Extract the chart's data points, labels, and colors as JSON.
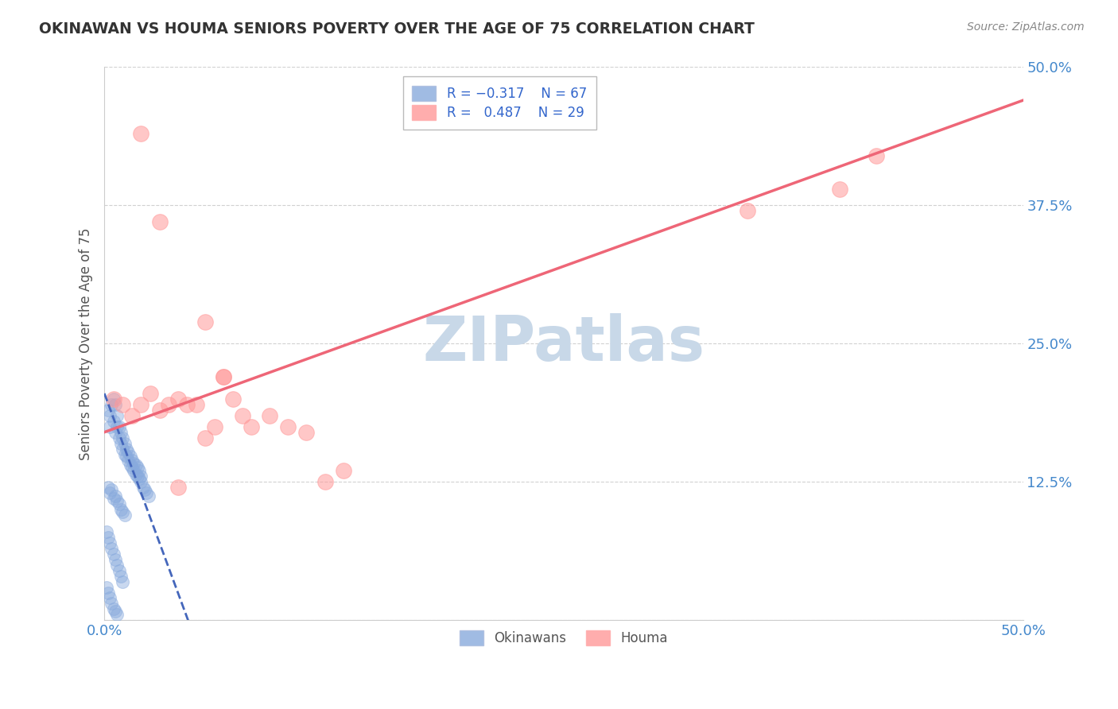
{
  "title": "OKINAWAN VS HOUMA SENIORS POVERTY OVER THE AGE OF 75 CORRELATION CHART",
  "source_text": "Source: ZipAtlas.com",
  "ylabel": "Seniors Poverty Over the Age of 75",
  "xlabel": "",
  "xlim": [
    0,
    0.5
  ],
  "ylim": [
    0,
    0.5
  ],
  "xticks": [
    0.0,
    0.125,
    0.25,
    0.375,
    0.5
  ],
  "yticks": [
    0.0,
    0.125,
    0.25,
    0.375,
    0.5
  ],
  "xticklabels": [
    "0.0%",
    "",
    "",
    "",
    "50.0%"
  ],
  "yticklabels": [
    "",
    "12.5%",
    "25.0%",
    "37.5%",
    "50.0%"
  ],
  "legend_label_blue": "Okinawans",
  "legend_label_pink": "Houma",
  "blue_color": "#88AADD",
  "pink_color": "#FF9999",
  "blue_line_color": "#4466BB",
  "pink_line_color": "#EE6677",
  "watermark_color": "#C8D8E8",
  "okinawan_x": [
    0.002,
    0.003,
    0.003,
    0.004,
    0.005,
    0.005,
    0.006,
    0.006,
    0.007,
    0.007,
    0.008,
    0.008,
    0.009,
    0.009,
    0.01,
    0.01,
    0.011,
    0.011,
    0.012,
    0.012,
    0.013,
    0.013,
    0.014,
    0.014,
    0.015,
    0.015,
    0.016,
    0.016,
    0.017,
    0.017,
    0.018,
    0.018,
    0.019,
    0.019,
    0.02,
    0.02,
    0.021,
    0.022,
    0.023,
    0.024,
    0.002,
    0.003,
    0.004,
    0.005,
    0.006,
    0.007,
    0.008,
    0.009,
    0.01,
    0.011,
    0.001,
    0.002,
    0.003,
    0.004,
    0.005,
    0.006,
    0.007,
    0.008,
    0.009,
    0.01,
    0.001,
    0.002,
    0.003,
    0.004,
    0.005,
    0.006,
    0.007
  ],
  "okinawan_y": [
    0.19,
    0.185,
    0.175,
    0.195,
    0.18,
    0.2,
    0.17,
    0.195,
    0.175,
    0.185,
    0.165,
    0.175,
    0.16,
    0.17,
    0.155,
    0.165,
    0.15,
    0.16,
    0.148,
    0.155,
    0.145,
    0.152,
    0.14,
    0.148,
    0.138,
    0.145,
    0.135,
    0.142,
    0.132,
    0.14,
    0.13,
    0.138,
    0.128,
    0.135,
    0.125,
    0.13,
    0.12,
    0.118,
    0.115,
    0.112,
    0.12,
    0.115,
    0.118,
    0.11,
    0.112,
    0.108,
    0.105,
    0.1,
    0.098,
    0.095,
    0.08,
    0.075,
    0.07,
    0.065,
    0.06,
    0.055,
    0.05,
    0.045,
    0.04,
    0.035,
    0.03,
    0.025,
    0.02,
    0.015,
    0.01,
    0.008,
    0.005
  ],
  "houma_x": [
    0.005,
    0.01,
    0.015,
    0.02,
    0.025,
    0.03,
    0.035,
    0.04,
    0.045,
    0.05,
    0.055,
    0.06,
    0.065,
    0.07,
    0.08,
    0.09,
    0.1,
    0.11,
    0.12,
    0.13,
    0.055,
    0.065,
    0.075,
    0.02,
    0.03,
    0.04,
    0.35,
    0.4,
    0.42
  ],
  "houma_y": [
    0.2,
    0.195,
    0.185,
    0.195,
    0.205,
    0.19,
    0.195,
    0.2,
    0.195,
    0.195,
    0.165,
    0.175,
    0.22,
    0.2,
    0.175,
    0.185,
    0.175,
    0.17,
    0.125,
    0.135,
    0.27,
    0.22,
    0.185,
    0.44,
    0.36,
    0.12,
    0.37,
    0.39,
    0.42
  ]
}
